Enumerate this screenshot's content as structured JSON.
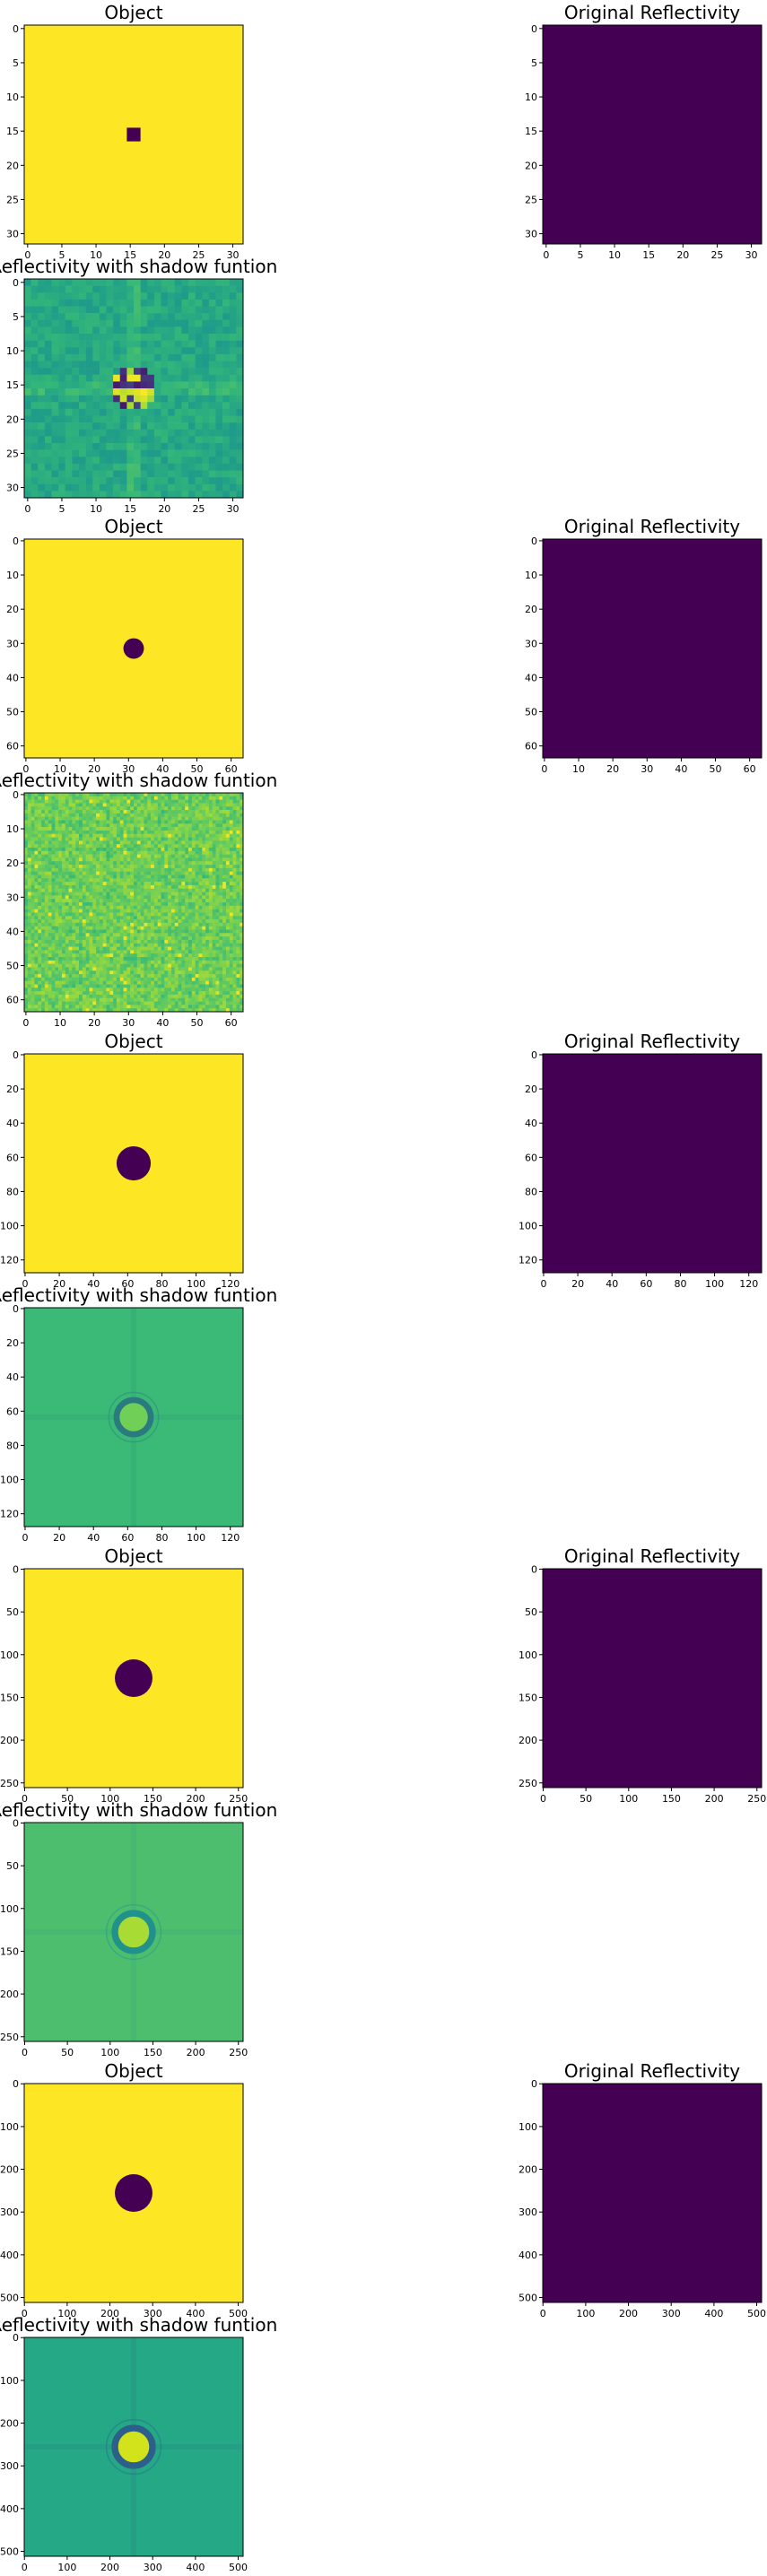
{
  "figure": {
    "background": "#ffffff"
  },
  "colormap": {
    "name": "viridis",
    "stops": [
      "#440154",
      "#482878",
      "#3e4989",
      "#31688e",
      "#26828e",
      "#1f9e89",
      "#35b779",
      "#6ece58",
      "#b5de2b",
      "#fde725"
    ]
  },
  "chart_data": [
    {
      "type": "heatmap",
      "title": "Object",
      "size": 32,
      "xlim": [
        0,
        31
      ],
      "ylim": [
        31,
        0
      ],
      "xticks": [
        0,
        5,
        10,
        15,
        20,
        25,
        30
      ],
      "yticks": [
        0,
        5,
        10,
        15,
        20,
        25,
        30
      ],
      "fill": "#fde725",
      "disk": {
        "center": [
          15.5,
          15.5
        ],
        "radius": 1.0,
        "value": 0,
        "color": "#440154"
      },
      "pattern": "object"
    },
    {
      "type": "heatmap",
      "title": "Original Reflectivity",
      "size": 32,
      "xlim": [
        0,
        31
      ],
      "ylim": [
        31,
        0
      ],
      "xticks": [
        0,
        5,
        10,
        15,
        20,
        25,
        30
      ],
      "yticks": [
        0,
        5,
        10,
        15,
        20,
        25,
        30
      ],
      "fill": "#440154",
      "pattern": "uniform"
    },
    {
      "type": "heatmap",
      "title": "Reflectivity with shadow funtion",
      "size": 32,
      "xlim": [
        0,
        31
      ],
      "ylim": [
        31,
        0
      ],
      "xticks": [
        0,
        5,
        10,
        15,
        20,
        25,
        30
      ],
      "yticks": [
        0,
        5,
        10,
        15,
        20,
        25,
        30
      ],
      "pattern": "noise",
      "base": 0.6,
      "spread": 0.06,
      "center": [
        15.5,
        15.5
      ],
      "hot_radius": 3.5
    },
    {
      "type": "heatmap",
      "title": "Object",
      "size": 64,
      "xlim": [
        0,
        63
      ],
      "ylim": [
        63,
        0
      ],
      "xticks": [
        0,
        10,
        20,
        30,
        40,
        50,
        60
      ],
      "yticks": [
        0,
        10,
        20,
        30,
        40,
        50,
        60
      ],
      "fill": "#fde725",
      "disk": {
        "center": [
          31.5,
          31.5
        ],
        "radius": 3.0,
        "value": 0,
        "color": "#440154"
      },
      "pattern": "object"
    },
    {
      "type": "heatmap",
      "title": "Original Reflectivity",
      "size": 64,
      "xlim": [
        0,
        63
      ],
      "ylim": [
        63,
        0
      ],
      "xticks": [
        0,
        10,
        20,
        30,
        40,
        50,
        60
      ],
      "yticks": [
        0,
        10,
        20,
        30,
        40,
        50,
        60
      ],
      "fill": "#440154",
      "pattern": "uniform"
    },
    {
      "type": "heatmap",
      "title": "Reflectivity with shadow funtion",
      "size": 64,
      "xlim": [
        0,
        63
      ],
      "ylim": [
        63,
        0
      ],
      "xticks": [
        0,
        10,
        20,
        30,
        40,
        50,
        60
      ],
      "yticks": [
        0,
        10,
        20,
        30,
        40,
        50,
        60
      ],
      "pattern": "speckle",
      "base": 0.78,
      "spread": 0.08
    },
    {
      "type": "heatmap",
      "title": "Object",
      "size": 128,
      "xlim": [
        0,
        127
      ],
      "ylim": [
        127,
        0
      ],
      "xticks": [
        0,
        20,
        40,
        60,
        80,
        100,
        120
      ],
      "yticks": [
        0,
        20,
        40,
        60,
        80,
        100,
        120
      ],
      "fill": "#fde725",
      "disk": {
        "center": [
          63.5,
          63.5
        ],
        "radius": 10,
        "value": 0,
        "color": "#440154"
      },
      "pattern": "object"
    },
    {
      "type": "heatmap",
      "title": "Original Reflectivity",
      "size": 128,
      "xlim": [
        0,
        127
      ],
      "ylim": [
        127,
        0
      ],
      "xticks": [
        0,
        20,
        40,
        60,
        80,
        100,
        120
      ],
      "yticks": [
        0,
        20,
        40,
        60,
        80,
        100,
        120
      ],
      "fill": "#440154",
      "pattern": "uniform"
    },
    {
      "type": "heatmap",
      "title": "Reflectivity with shadow funtion",
      "size": 128,
      "xlim": [
        0,
        127
      ],
      "ylim": [
        127,
        0
      ],
      "xticks": [
        0,
        20,
        40,
        60,
        80,
        100,
        120
      ],
      "yticks": [
        0,
        20,
        40,
        60,
        80,
        100,
        120
      ],
      "pattern": "ring",
      "fill": "#3aba76",
      "ring": {
        "center": [
          63.5,
          63.5
        ],
        "radius": 10,
        "color": "#2a7a80",
        "inner": "#6fcf57"
      }
    },
    {
      "type": "heatmap",
      "title": "Object",
      "size": 256,
      "xlim": [
        0,
        255
      ],
      "ylim": [
        255,
        0
      ],
      "xticks": [
        0,
        50,
        100,
        150,
        200,
        250
      ],
      "yticks": [
        0,
        50,
        100,
        150,
        200,
        250
      ],
      "fill": "#fde725",
      "disk": {
        "center": [
          127.5,
          127.5
        ],
        "radius": 22,
        "value": 0,
        "color": "#440154"
      },
      "pattern": "object"
    },
    {
      "type": "heatmap",
      "title": "Original Reflectivity",
      "size": 256,
      "xlim": [
        0,
        255
      ],
      "ylim": [
        255,
        0
      ],
      "xticks": [
        0,
        50,
        100,
        150,
        200,
        250
      ],
      "yticks": [
        0,
        50,
        100,
        150,
        200,
        250
      ],
      "fill": "#440154",
      "pattern": "uniform"
    },
    {
      "type": "heatmap",
      "title": "Reflectivity with shadow funtion",
      "size": 256,
      "xlim": [
        0,
        255
      ],
      "ylim": [
        255,
        0
      ],
      "xticks": [
        0,
        50,
        100,
        150,
        200,
        250
      ],
      "yticks": [
        0,
        50,
        100,
        150,
        200,
        250
      ],
      "pattern": "ring",
      "fill": "#4dbd6e",
      "ring": {
        "center": [
          127.5,
          127.5
        ],
        "radius": 22,
        "color": "#21918c",
        "inner": "#a8db34"
      }
    },
    {
      "type": "heatmap",
      "title": "Object",
      "size": 512,
      "xlim": [
        0,
        511
      ],
      "ylim": [
        511,
        0
      ],
      "xticks": [
        0,
        100,
        200,
        300,
        400,
        500
      ],
      "yticks": [
        0,
        100,
        200,
        300,
        400,
        500
      ],
      "fill": "#fde725",
      "disk": {
        "center": [
          255.5,
          255.5
        ],
        "radius": 44,
        "value": 0,
        "color": "#440154"
      },
      "pattern": "object"
    },
    {
      "type": "heatmap",
      "title": "Original Reflectivity",
      "size": 512,
      "xlim": [
        0,
        511
      ],
      "ylim": [
        511,
        0
      ],
      "xticks": [
        0,
        100,
        200,
        300,
        400,
        500
      ],
      "yticks": [
        0,
        100,
        200,
        300,
        400,
        500
      ],
      "fill": "#440154",
      "pattern": "uniform"
    },
    {
      "type": "heatmap",
      "title": "Reflectivity with shadow funtion",
      "size": 512,
      "xlim": [
        0,
        511
      ],
      "ylim": [
        511,
        0
      ],
      "xticks": [
        0,
        100,
        200,
        300,
        400,
        500
      ],
      "yticks": [
        0,
        100,
        200,
        300,
        400,
        500
      ],
      "pattern": "ring",
      "fill": "#24a885",
      "ring": {
        "center": [
          255.5,
          255.5
        ],
        "radius": 44,
        "color": "#2c5f8a",
        "inner": "#d2e21b"
      }
    }
  ]
}
